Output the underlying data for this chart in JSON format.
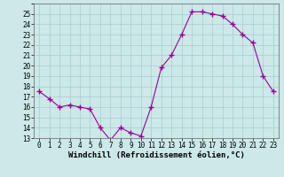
{
  "hours": [
    0,
    1,
    2,
    3,
    4,
    5,
    6,
    7,
    8,
    9,
    10,
    11,
    12,
    13,
    14,
    15,
    16,
    17,
    18,
    19,
    20,
    21,
    22,
    23
  ],
  "values": [
    17.5,
    16.8,
    16.0,
    16.2,
    16.0,
    15.8,
    14.0,
    12.8,
    14.0,
    13.5,
    13.2,
    16.0,
    19.8,
    21.0,
    23.0,
    25.2,
    25.2,
    25.0,
    24.8,
    24.0,
    23.0,
    22.2,
    19.0,
    17.5
  ],
  "line_color": "#990099",
  "marker_color": "#990099",
  "bg_color": "#cce8e8",
  "grid_color": "#aacccc",
  "xlabel": "Windchill (Refroidissement éolien,°C)",
  "ylim": [
    13,
    26
  ],
  "xlim": [
    -0.5,
    23.5
  ],
  "yticks": [
    13,
    14,
    15,
    16,
    17,
    18,
    19,
    20,
    21,
    22,
    23,
    24,
    25
  ],
  "xticks": [
    0,
    1,
    2,
    3,
    4,
    5,
    6,
    7,
    8,
    9,
    10,
    11,
    12,
    13,
    14,
    15,
    16,
    17,
    18,
    19,
    20,
    21,
    22,
    23
  ],
  "axis_fontsize": 6.5,
  "tick_fontsize": 5.5,
  "xlabel_fontsize": 6.5
}
